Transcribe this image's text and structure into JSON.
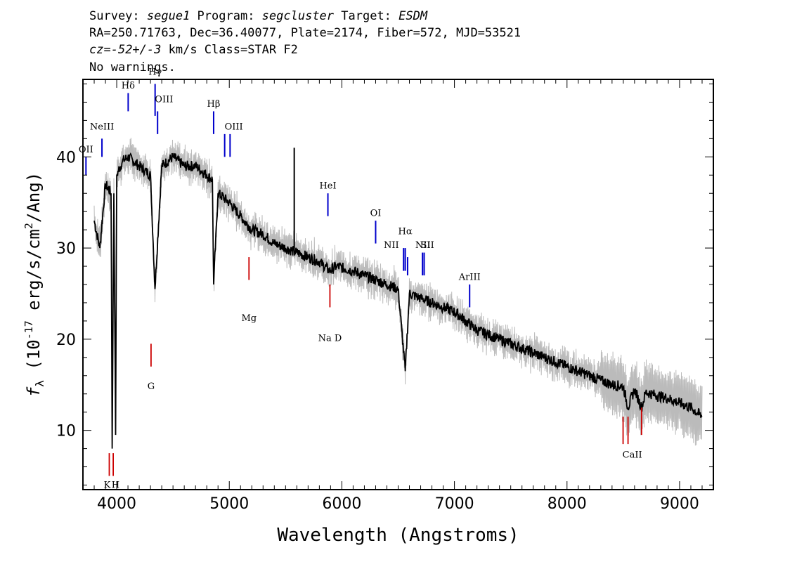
{
  "header": {
    "line1": {
      "survey_label": "Survey: ",
      "survey": "segue1",
      "program_label": " Program: ",
      "program": "segcluster",
      "target_label": " Target: ",
      "target": "ESDM"
    },
    "line2": "RA=250.71763, Dec=36.40077, Plate=2174, Fiber=572, MJD=53521",
    "line3": {
      "cz_label": "cz=",
      "cz_value": "-52+/-3",
      "rest": " km/s Class=STAR F2"
    },
    "line4": "No warnings."
  },
  "chart_data": {
    "type": "line",
    "xlabel": "Wavelength (Angstroms)",
    "ylabel": "f_λ (10^-17 erg/s/cm^2/Ang)",
    "xlim": [
      3700,
      9300
    ],
    "ylim": [
      3.5,
      48.5
    ],
    "xticks": [
      4000,
      5000,
      6000,
      7000,
      8000,
      9000
    ],
    "yticks": [
      10,
      20,
      30,
      40
    ],
    "grid": false,
    "colors": {
      "flux": "#000000",
      "noise": "#bbbbbb",
      "emission": "#0000cc",
      "absorption": "#cc0000"
    },
    "series": [
      {
        "x": [
          3800,
          3850,
          3900,
          3950,
          3960,
          3975,
          3990,
          4000,
          4050,
          4100,
          4150,
          4200,
          4250,
          4300,
          4340,
          4400,
          4500,
          4600,
          4700,
          4800,
          4850,
          4861,
          4900,
          5000,
          5100,
          5200,
          5300,
          5400,
          5500,
          5600,
          5700,
          5800,
          5890,
          5950,
          6100,
          6200,
          6300,
          6400,
          6500,
          6563,
          6600,
          6700,
          6800,
          6900,
          7000,
          7100,
          7200,
          7300,
          7400,
          7500,
          7600,
          7700,
          7800,
          7900,
          8000,
          8100,
          8200,
          8300,
          8400,
          8500,
          8542,
          8600,
          8662,
          8700,
          8800,
          8900,
          9000,
          9100,
          9200
        ],
        "y": [
          33,
          30,
          37,
          36,
          8,
          36,
          9.5,
          38,
          39.5,
          40,
          39.5,
          39,
          38.5,
          38,
          25.5,
          39,
          40,
          39,
          39,
          38,
          37.5,
          26,
          36,
          35,
          33.5,
          32,
          31.5,
          30.5,
          30,
          29.5,
          29,
          28.5,
          27.5,
          28,
          27.5,
          27,
          26.5,
          26,
          25.5,
          16.5,
          25,
          24.5,
          24,
          23.5,
          23,
          22,
          21,
          20.5,
          20,
          19.5,
          19,
          18.5,
          18,
          17.5,
          17,
          16.5,
          16,
          15.5,
          15,
          14.8,
          12.5,
          14.5,
          12.5,
          14.2,
          13.8,
          13.5,
          13,
          12.5,
          11.5
        ]
      }
    ],
    "emission_lines": [
      {
        "label": "OII",
        "x": 3727
      },
      {
        "label": "NeIII",
        "x": 3869
      },
      {
        "label": "Hδ",
        "x": 4102
      },
      {
        "label": "Hγ",
        "x": 4341
      },
      {
        "label": "OIII",
        "x": 4363
      },
      {
        "label": "Hβ",
        "x": 4861
      },
      {
        "label": "OIII",
        "x": 4959
      },
      {
        "label": "",
        "x": 5007
      },
      {
        "label": "HeI",
        "x": 5876
      },
      {
        "label": "OI",
        "x": 6300
      },
      {
        "label": "NII",
        "x": 6548
      },
      {
        "label": "Hα",
        "x": 6563
      },
      {
        "label": "",
        "x": 6584
      },
      {
        "label": "NII",
        "x": 6716
      },
      {
        "label": "SII",
        "x": 6731
      },
      {
        "label": "ArIII",
        "x": 7135
      }
    ],
    "absorption_lines": [
      {
        "label": "K",
        "x": 3934
      },
      {
        "label": "H",
        "x": 3969
      },
      {
        "label": "G",
        "x": 4305
      },
      {
        "label": "Mg",
        "x": 5175
      },
      {
        "label": "Na D",
        "x": 5894
      },
      {
        "label": "CaII",
        "x": 8498
      },
      {
        "label": "",
        "x": 8542
      },
      {
        "label": "",
        "x": 8662
      }
    ]
  }
}
